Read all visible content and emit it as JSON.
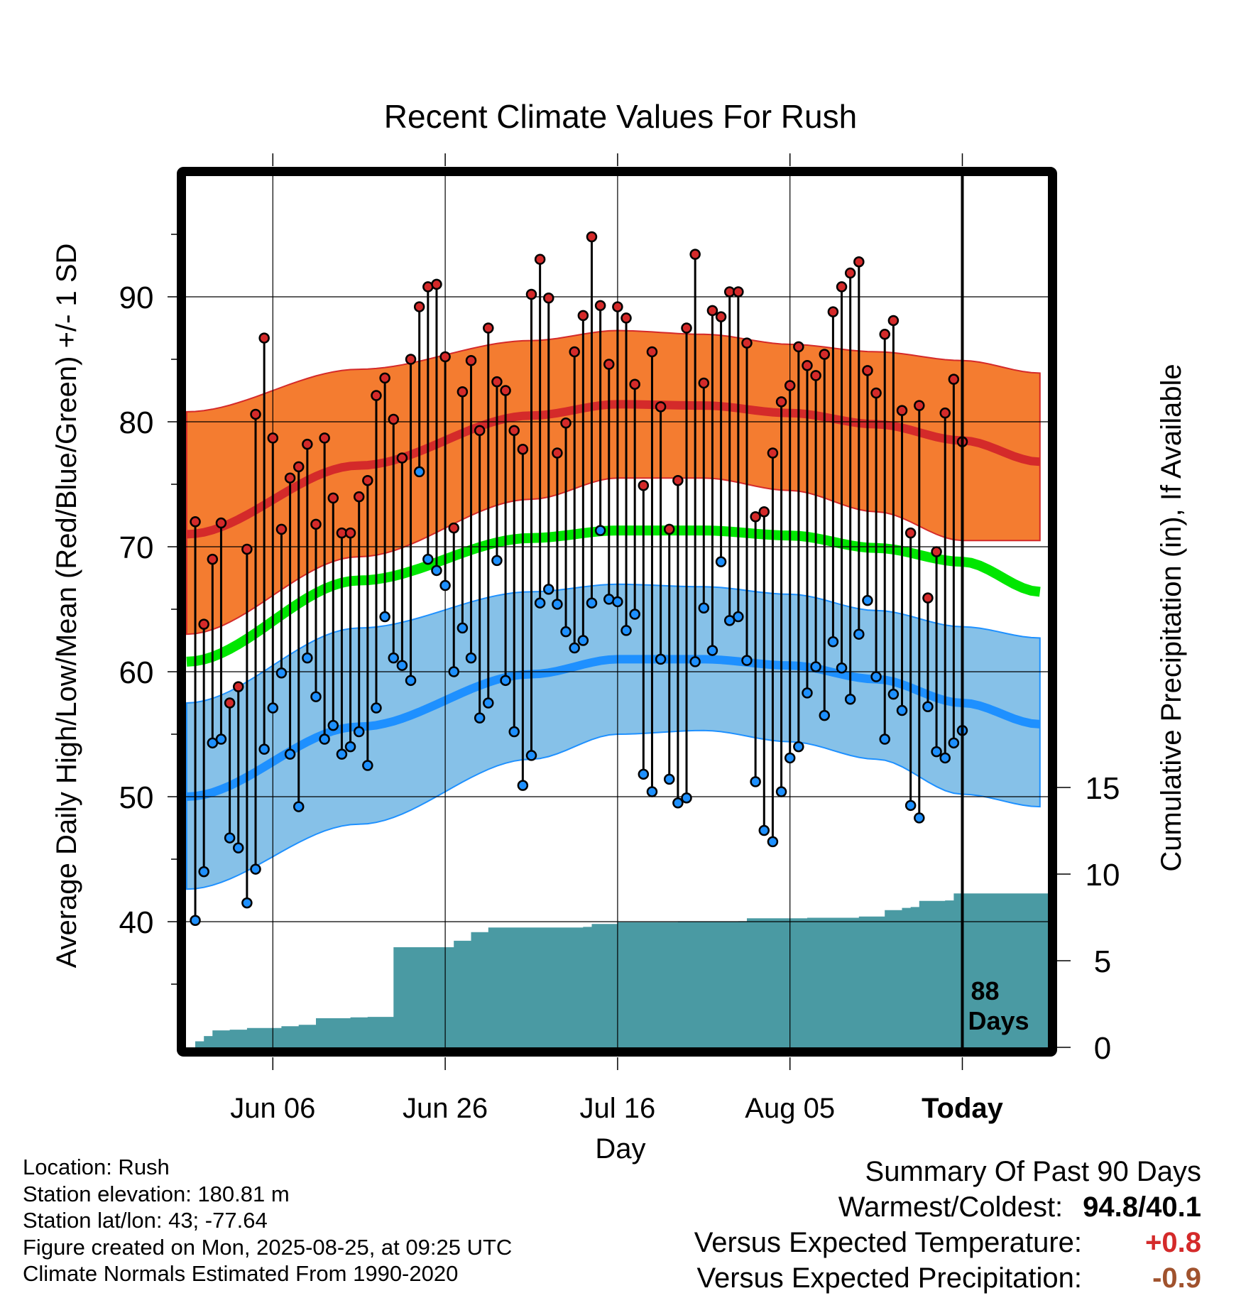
{
  "chart_data": {
    "type": "line",
    "title": "Recent Climate Values For Rush",
    "xlabel": "Day",
    "ylabel_left": "Average Daily High/Low/Mean (Red/Blue/Green) +/- 1 SD",
    "ylabel_right": "Cumulative Precipitation (in), If Available",
    "ylim_left": [
      30,
      100
    ],
    "yticks_left": [
      40,
      50,
      60,
      70,
      80,
      90
    ],
    "ylim_right": [
      0,
      25.5
    ],
    "yticks_right": [
      0,
      5,
      10,
      15
    ],
    "x_range_days": [
      -90,
      9
    ],
    "x_ticks": [
      {
        "label": "Jun 06",
        "day_offset": -80
      },
      {
        "label": "Jun 26",
        "day_offset": -60
      },
      {
        "label": "Jul 16",
        "day_offset": -40
      },
      {
        "label": "Aug 05",
        "day_offset": -20
      },
      {
        "label": "Today",
        "day_offset": 0
      }
    ],
    "today_marker_label": [
      "88",
      "Days"
    ],
    "grid": true,
    "colors": {
      "normal_high": "#d42a2a",
      "high_band": "#f47c30",
      "normal_mean": "#00e600",
      "normal_low": "#1e90ff",
      "low_band": "#86c1e8",
      "precip": "#4a9aa3",
      "high_marker": "#d42a2a",
      "low_marker": "#1e90ff",
      "positive_anomaly": "#d42a2a",
      "negative_precip_anomaly": "#a0522d"
    },
    "normals": {
      "days": [
        -90,
        -70,
        -50,
        -40,
        -30,
        -20,
        -10,
        0,
        9
      ],
      "high_mean": [
        71.0,
        76.5,
        80.5,
        81.4,
        81.3,
        80.7,
        79.8,
        78.5,
        76.8
      ],
      "high_sd_upper": [
        80.8,
        84.2,
        86.5,
        87.3,
        87.0,
        86.2,
        85.6,
        84.9,
        83.9
      ],
      "high_sd_lower": [
        63.0,
        69.2,
        73.8,
        75.5,
        75.5,
        74.5,
        72.8,
        70.5,
        70.5
      ],
      "mean": [
        60.8,
        67.3,
        70.7,
        71.3,
        71.3,
        70.9,
        69.9,
        68.8,
        66.4
      ],
      "low_mean": [
        50.0,
        55.6,
        59.8,
        61.0,
        61.0,
        60.5,
        59.4,
        57.5,
        55.8
      ],
      "low_sd_upper": [
        57.5,
        63.5,
        66.4,
        67.0,
        66.8,
        66.2,
        64.9,
        63.6,
        62.7
      ],
      "low_sd_lower": [
        42.6,
        47.8,
        53.0,
        55.0,
        55.3,
        54.4,
        53.0,
        50.2,
        49.2
      ]
    },
    "series": [
      {
        "name": "High",
        "values": [
          72.0,
          63.8,
          69.0,
          71.9,
          57.5,
          58.8,
          69.8,
          80.6,
          86.7,
          78.7,
          71.4,
          75.5,
          76.4,
          78.2,
          71.8,
          78.7,
          73.9,
          71.1,
          71.1,
          74.0,
          75.3,
          82.1,
          83.5,
          80.2,
          77.1,
          85.0,
          89.2,
          90.8,
          91.0,
          85.2,
          71.5,
          82.4,
          84.9,
          79.3,
          87.5,
          83.2,
          82.5,
          79.3,
          77.8,
          90.2,
          93.0,
          89.9,
          77.5,
          79.9,
          85.6,
          88.5,
          94.8,
          89.3,
          84.6,
          89.2,
          88.3,
          83.0,
          74.9,
          85.6,
          81.2,
          71.4,
          75.3,
          87.5,
          93.4,
          83.1,
          88.9,
          88.4,
          90.4,
          90.4,
          86.3,
          72.4,
          72.8,
          77.5,
          81.6,
          82.9,
          86.0,
          84.5,
          83.7,
          85.4,
          88.8,
          90.8,
          91.9,
          92.8,
          84.1,
          82.3,
          87.0,
          88.1,
          80.9,
          71.1,
          81.3,
          65.9,
          69.6,
          80.7,
          83.4,
          78.4
        ]
      },
      {
        "name": "Low",
        "values": [
          40.1,
          44.0,
          54.3,
          54.6,
          46.7,
          45.9,
          41.5,
          44.2,
          53.8,
          57.1,
          59.9,
          53.4,
          49.2,
          61.1,
          58.0,
          54.6,
          55.7,
          53.4,
          54.0,
          55.2,
          52.5,
          57.1,
          64.4,
          61.1,
          60.5,
          59.3,
          76.0,
          69.0,
          68.1,
          66.9,
          60.0,
          63.5,
          61.1,
          56.3,
          57.5,
          68.9,
          59.3,
          55.2,
          50.9,
          53.3,
          65.5,
          66.6,
          65.4,
          63.2,
          61.9,
          62.5,
          65.5,
          71.3,
          65.8,
          65.6,
          63.3,
          64.6,
          51.8,
          50.4,
          61.0,
          51.4,
          49.5,
          49.9,
          60.8,
          65.1,
          61.7,
          68.8,
          64.1,
          64.4,
          60.9,
          51.2,
          47.3,
          46.4,
          50.4,
          53.1,
          54.0,
          58.3,
          60.4,
          56.5,
          62.4,
          60.3,
          57.8,
          63.0,
          65.7,
          59.6,
          54.6,
          58.2,
          56.9,
          49.3,
          48.3,
          57.2,
          53.6,
          53.1,
          54.3,
          55.3
        ]
      },
      {
        "name": "Cumulative Precipitation",
        "steps": [
          [
            -89,
            0.35
          ],
          [
            -88,
            0.65
          ],
          [
            -87,
            0.98
          ],
          [
            -85,
            1.02
          ],
          [
            -83,
            1.12
          ],
          [
            -79,
            1.22
          ],
          [
            -77,
            1.3
          ],
          [
            -75,
            1.68
          ],
          [
            -71,
            1.73
          ],
          [
            -69,
            1.76
          ],
          [
            -66,
            5.78
          ],
          [
            -61,
            5.78
          ],
          [
            -59,
            6.15
          ],
          [
            -57,
            6.65
          ],
          [
            -55,
            6.92
          ],
          [
            -44,
            6.95
          ],
          [
            -43,
            7.12
          ],
          [
            -40,
            7.22
          ],
          [
            -33,
            7.25
          ],
          [
            -26,
            7.28
          ],
          [
            -25,
            7.45
          ],
          [
            -18,
            7.48
          ],
          [
            -12,
            7.55
          ],
          [
            -9,
            7.92
          ],
          [
            -7,
            8.05
          ],
          [
            -6,
            8.1
          ],
          [
            -5,
            8.45
          ],
          [
            -2,
            8.48
          ],
          [
            -1,
            8.88
          ],
          [
            9,
            8.88
          ]
        ]
      }
    ]
  },
  "station_info": [
    "Location: Rush",
    "Station elevation: 180.81 m",
    "Station lat/lon: 43; -77.64",
    "Figure created on Mon, 2025-08-25, at 09:25 UTC",
    "Climate Normals Estimated From 1990-2020"
  ],
  "summary": {
    "heading": "Summary Of Past 90 Days",
    "warmest_coldest_label": "Warmest/Coldest:",
    "warmest_coldest_value": "94.8/40.1",
    "temp_label": "Versus Expected Temperature:",
    "temp_value": "+0.8",
    "precip_label": "Versus Expected Precipitation:",
    "precip_value": "-0.9"
  }
}
